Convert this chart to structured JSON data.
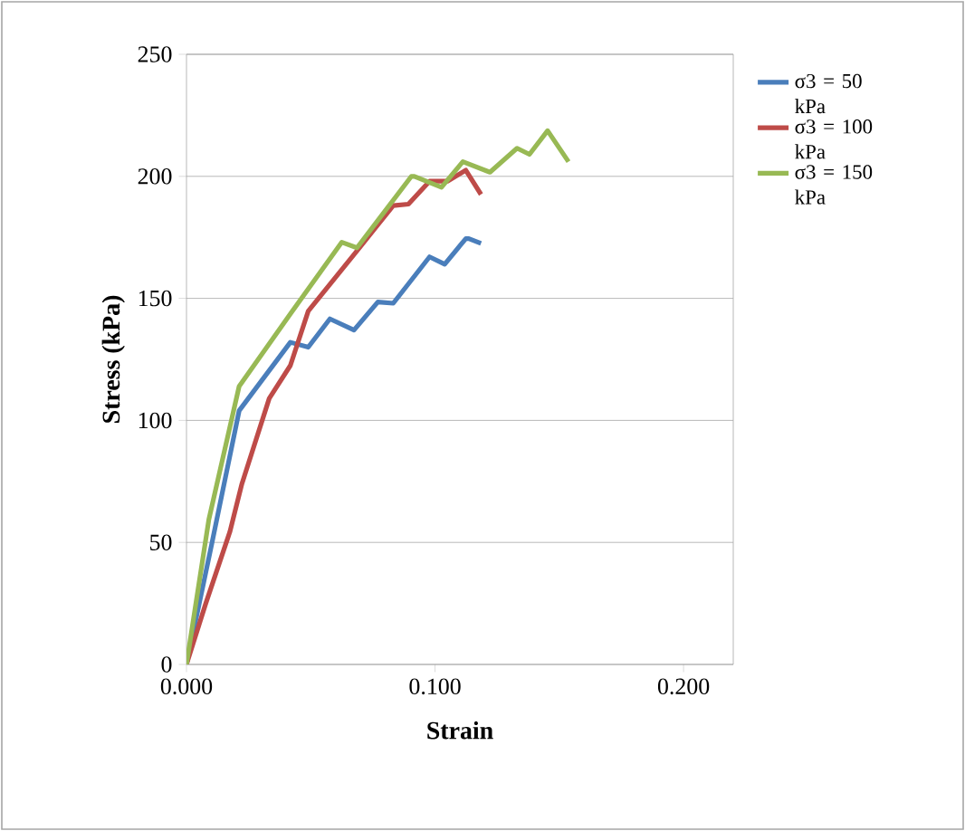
{
  "chart_data": {
    "type": "line",
    "xlabel": "Strain",
    "ylabel": "Stress (kPa)",
    "xlim": [
      0,
      0.22
    ],
    "xticks": [
      {
        "value": 0,
        "label": "0.000"
      },
      {
        "value": 0.1,
        "label": "0.100"
      },
      {
        "value": 0.2,
        "label": "0.200"
      }
    ],
    "ylim": [
      0,
      250
    ],
    "yticks": [
      0,
      50,
      100,
      150,
      200,
      250
    ],
    "grid": "y",
    "legend": "right",
    "marker": "none",
    "line_style": "solid",
    "series": [
      {
        "name": "σ3 = 50 kPa",
        "color": "#4a7ebb",
        "x": [
          0,
          0.0102,
          0.0212,
          0.0418,
          0.049,
          0.0577,
          0.0674,
          0.077,
          0.0832,
          0.0978,
          0.1039,
          0.1124,
          0.1136,
          0.1185
        ],
        "values": [
          0,
          49.5,
          104,
          132,
          130,
          141.6,
          137,
          148.5,
          148,
          167,
          164,
          174.5,
          174.5,
          172.5
        ]
      },
      {
        "name": "σ3 = 100 kPa",
        "color": "#be4b48",
        "x": [
          0,
          0.0077,
          0.0175,
          0.0223,
          0.0333,
          0.0418,
          0.049,
          0.0686,
          0.0832,
          0.0893,
          0.0978,
          0.105,
          0.1124,
          0.1185
        ],
        "values": [
          0,
          24.8,
          54.5,
          74,
          109,
          122.5,
          144.8,
          169.5,
          188,
          188.6,
          198,
          198,
          202.5,
          192.6
        ]
      },
      {
        "name": "σ3 = 150 kPa",
        "color": "#98b954",
        "x": [
          0,
          0.009,
          0.0212,
          0.0418,
          0.0625,
          0.0686,
          0.0905,
          0.0917,
          0.1026,
          0.1112,
          0.1221,
          0.133,
          0.138,
          0.1453,
          0.1537
        ],
        "values": [
          0,
          59.4,
          114,
          143.6,
          173,
          170.7,
          200,
          200,
          195.5,
          206,
          201.7,
          211.5,
          209,
          218.7,
          206
        ]
      }
    ]
  }
}
